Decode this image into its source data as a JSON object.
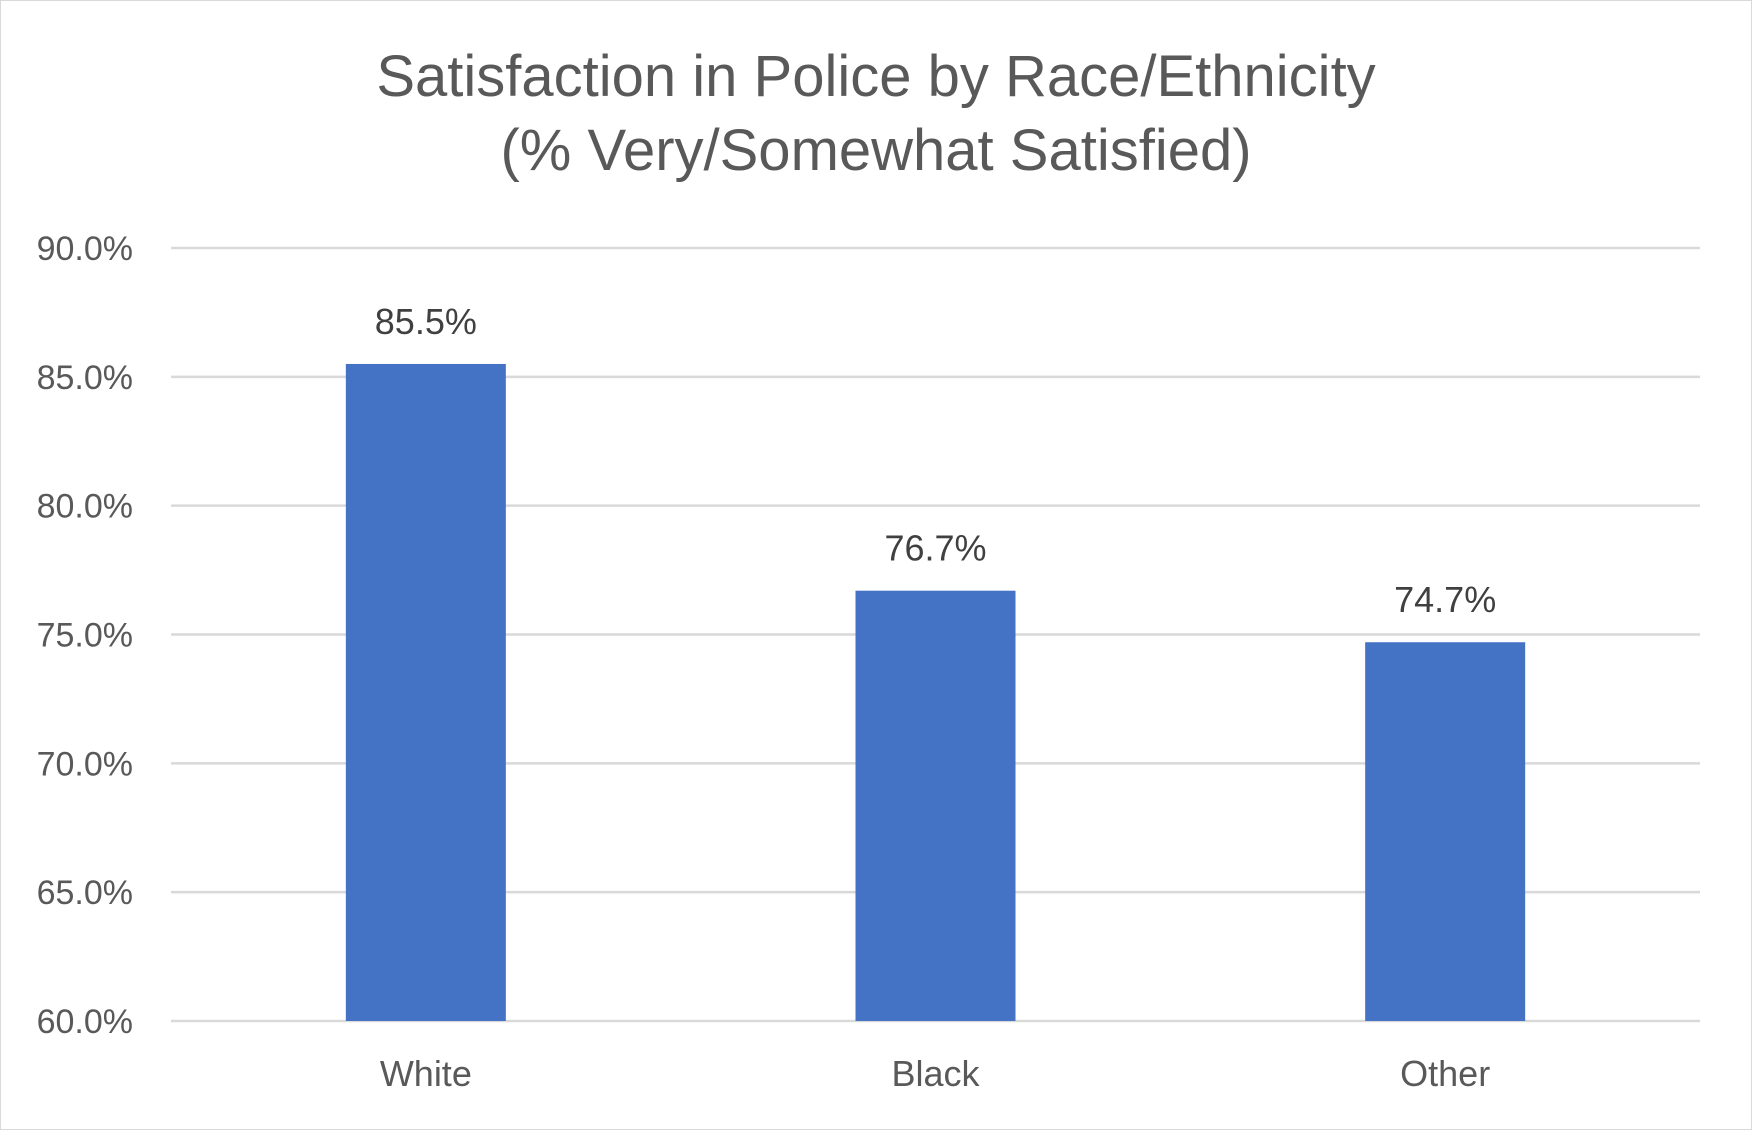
{
  "chart_data": {
    "type": "bar",
    "title": "Satisfaction in Police by Race/Ethnicity",
    "subtitle": "(% Very/Somewhat Satisfied)",
    "xlabel": "",
    "ylabel": "",
    "categories": [
      "White",
      "Black",
      "Other"
    ],
    "values": [
      85.5,
      76.7,
      74.7
    ],
    "data_labels": [
      "85.5%",
      "76.7%",
      "74.7%"
    ],
    "ylim": [
      60,
      90
    ],
    "yticks": [
      60,
      65,
      70,
      75,
      80,
      85,
      90
    ],
    "ytick_labels": [
      "60.0%",
      "65.0%",
      "70.0%",
      "75.0%",
      "80.0%",
      "85.0%",
      "90.0%"
    ],
    "grid": true,
    "legend": "none",
    "bar_color": "#4472c4",
    "grid_color": "#d9d9d9"
  }
}
